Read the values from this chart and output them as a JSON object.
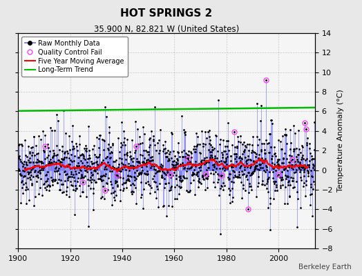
{
  "title": "HOT SPRINGS 2",
  "subtitle": "35.900 N, 82.821 W (United States)",
  "ylabel": "Temperature Anomaly (°C)",
  "credit": "Berkeley Earth",
  "xlim": [
    1900,
    2014
  ],
  "ylim": [
    -8,
    14
  ],
  "yticks": [
    -8,
    -6,
    -4,
    -2,
    0,
    2,
    4,
    6,
    8,
    10,
    12,
    14
  ],
  "xticks": [
    1900,
    1920,
    1940,
    1960,
    1980,
    2000
  ],
  "bg_color": "#e8e8e8",
  "plot_bg_color": "#f5f5f5",
  "raw_line_color": "#6666ff",
  "raw_dot_color": "#000000",
  "qc_color": "#ff44ff",
  "moving_avg_color": "#ff0000",
  "trend_color": "#00bb00",
  "seed": 42,
  "n_years": 114,
  "start_year": 1900
}
